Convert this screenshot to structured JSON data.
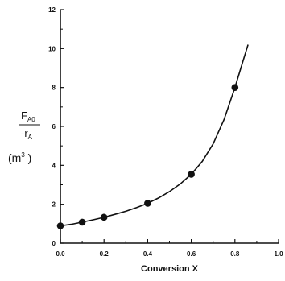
{
  "chart_data": {
    "type": "scatter",
    "title": "",
    "xlabel": "Conversion X",
    "ylabel": {
      "numerator": "F",
      "numerator_sub": "A0",
      "denominator": "-r",
      "denominator_sub": "A",
      "unit_open": "(m",
      "unit_sup": "3",
      "unit_close": " )"
    },
    "xlim": [
      0.0,
      1.0
    ],
    "ylim": [
      0,
      12
    ],
    "x_ticks": [
      "0.0",
      "0.2",
      "0.4",
      "0.6",
      "0.8",
      "1.0"
    ],
    "y_ticks": [
      "0",
      "2",
      "4",
      "6",
      "8",
      "10",
      "12"
    ],
    "grid": false,
    "series": [
      {
        "points": [
          {
            "x": 0.0,
            "y": 0.89
          },
          {
            "x": 0.1,
            "y": 1.08
          },
          {
            "x": 0.2,
            "y": 1.33
          },
          {
            "x": 0.4,
            "y": 2.05
          },
          {
            "x": 0.6,
            "y": 3.54
          },
          {
            "x": 0.8,
            "y": 8.0
          }
        ],
        "fit_curve": [
          {
            "x": 0.0,
            "y": 0.89
          },
          {
            "x": 0.05,
            "y": 0.97
          },
          {
            "x": 0.1,
            "y": 1.08
          },
          {
            "x": 0.15,
            "y": 1.2
          },
          {
            "x": 0.2,
            "y": 1.33
          },
          {
            "x": 0.25,
            "y": 1.48
          },
          {
            "x": 0.3,
            "y": 1.64
          },
          {
            "x": 0.35,
            "y": 1.83
          },
          {
            "x": 0.4,
            "y": 2.05
          },
          {
            "x": 0.45,
            "y": 2.32
          },
          {
            "x": 0.5,
            "y": 2.65
          },
          {
            "x": 0.55,
            "y": 3.05
          },
          {
            "x": 0.6,
            "y": 3.54
          },
          {
            "x": 0.65,
            "y": 4.2
          },
          {
            "x": 0.7,
            "y": 5.1
          },
          {
            "x": 0.75,
            "y": 6.35
          },
          {
            "x": 0.8,
            "y": 8.0
          },
          {
            "x": 0.83,
            "y": 9.1
          },
          {
            "x": 0.86,
            "y": 10.2
          }
        ]
      }
    ]
  }
}
